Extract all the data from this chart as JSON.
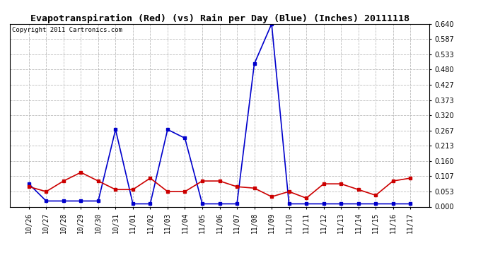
{
  "title": "Evapotranspiration (Red) (vs) Rain per Day (Blue) (Inches) 20111118",
  "copyright": "Copyright 2011 Cartronics.com",
  "labels": [
    "10/26",
    "10/27",
    "10/28",
    "10/29",
    "10/30",
    "10/31",
    "11/01",
    "11/02",
    "11/03",
    "11/04",
    "11/05",
    "11/06",
    "11/07",
    "11/08",
    "11/09",
    "11/10",
    "11/11",
    "11/12",
    "11/13",
    "11/14",
    "11/15",
    "11/16",
    "11/17"
  ],
  "blue_rain": [
    0.08,
    0.02,
    0.02,
    0.02,
    0.02,
    0.27,
    0.01,
    0.01,
    0.27,
    0.24,
    0.01,
    0.01,
    0.01,
    0.5,
    0.64,
    0.01,
    0.01,
    0.01,
    0.01,
    0.01,
    0.01,
    0.01,
    0.01
  ],
  "red_et": [
    0.07,
    0.053,
    0.09,
    0.12,
    0.09,
    0.06,
    0.06,
    0.1,
    0.053,
    0.053,
    0.09,
    0.09,
    0.07,
    0.065,
    0.035,
    0.053,
    0.03,
    0.08,
    0.08,
    0.06,
    0.04,
    0.09,
    0.1
  ],
  "ylim": [
    0.0,
    0.64
  ],
  "yticks": [
    0.0,
    0.053,
    0.107,
    0.16,
    0.213,
    0.267,
    0.32,
    0.373,
    0.427,
    0.48,
    0.533,
    0.587,
    0.64
  ],
  "blue_color": "#0000cc",
  "red_color": "#cc0000",
  "bg_color": "#ffffff",
  "grid_color": "#bbbbbb",
  "title_fontsize": 9.5,
  "tick_fontsize": 7,
  "copyright_fontsize": 6.5
}
